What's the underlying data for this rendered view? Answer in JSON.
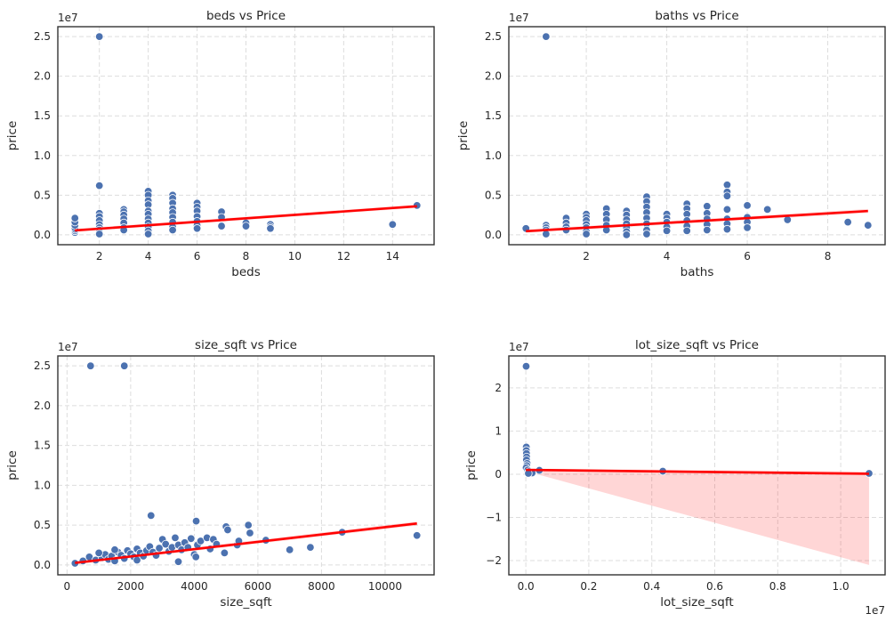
{
  "chart_data": [
    {
      "type": "scatter",
      "title": "beds vs Price",
      "xlabel": "beds",
      "ylabel": "price",
      "y_offset_text": "1e7",
      "x_offset_text": "",
      "xlim": [
        0.3,
        15.7
      ],
      "ylim": [
        -1250000.0,
        26250000.0
      ],
      "xticks": [
        2,
        4,
        6,
        8,
        10,
        12,
        14
      ],
      "xtick_labels": [
        "2",
        "4",
        "6",
        "8",
        "10",
        "12",
        "14"
      ],
      "yticks": [
        0,
        5000000.0,
        10000000.0,
        15000000.0,
        20000000.0,
        25000000.0
      ],
      "ytick_labels": [
        "0.0",
        "0.5",
        "1.0",
        "1.5",
        "2.0",
        "2.5"
      ],
      "grid": true,
      "regression": {
        "x": [
          1,
          15
        ],
        "y": [
          550000.0,
          3600000.0
        ],
        "ci_upper": [
          750000.0,
          3800000.0
        ],
        "ci_lower": [
          350000.0,
          3400000.0
        ]
      },
      "points": [
        [
          1,
          300000.0
        ],
        [
          1,
          500000.0
        ],
        [
          1,
          700000.0
        ],
        [
          1,
          900000.0
        ],
        [
          1,
          1200000.0
        ],
        [
          1,
          1600000.0
        ],
        [
          1,
          2100000.0
        ],
        [
          2,
          25000000.0
        ],
        [
          2,
          6200000.0
        ],
        [
          2,
          2700000.0
        ],
        [
          2,
          2300000.0
        ],
        [
          2,
          1800000.0
        ],
        [
          2,
          1300000.0
        ],
        [
          2,
          900000.0
        ],
        [
          2,
          600000.0
        ],
        [
          2,
          300000.0
        ],
        [
          2,
          100000.0
        ],
        [
          3,
          3200000.0
        ],
        [
          3,
          2900000.0
        ],
        [
          3,
          2500000.0
        ],
        [
          3,
          2000000.0
        ],
        [
          3,
          1500000.0
        ],
        [
          3,
          900000.0
        ],
        [
          3,
          600000.0
        ],
        [
          4,
          5500000.0
        ],
        [
          4,
          5000000.0
        ],
        [
          4,
          4300000.0
        ],
        [
          4,
          3800000.0
        ],
        [
          4,
          3000000.0
        ],
        [
          4,
          2600000.0
        ],
        [
          4,
          2000000.0
        ],
        [
          4,
          1500000.0
        ],
        [
          4,
          1000000.0
        ],
        [
          4,
          500000.0
        ],
        [
          4,
          100000.0
        ],
        [
          5,
          5000000.0
        ],
        [
          5,
          4600000.0
        ],
        [
          5,
          4000000.0
        ],
        [
          5,
          3300000.0
        ],
        [
          5,
          2800000.0
        ],
        [
          5,
          2200000.0
        ],
        [
          5,
          1600000.0
        ],
        [
          5,
          1000000.0
        ],
        [
          5,
          600000.0
        ],
        [
          6,
          4000000.0
        ],
        [
          6,
          3500000.0
        ],
        [
          6,
          3000000.0
        ],
        [
          6,
          2300000.0
        ],
        [
          6,
          1700000.0
        ],
        [
          6,
          1200000.0
        ],
        [
          6,
          800000.0
        ],
        [
          7,
          2900000.0
        ],
        [
          7,
          2200000.0
        ],
        [
          7,
          1100000.0
        ],
        [
          8,
          1500000.0
        ],
        [
          8,
          1100000.0
        ],
        [
          9,
          1300000.0
        ],
        [
          9,
          1000000.0
        ],
        [
          9,
          800000.0
        ],
        [
          14,
          1300000.0
        ],
        [
          15,
          3700000.0
        ]
      ]
    },
    {
      "type": "scatter",
      "title": "baths vs Price",
      "xlabel": "baths",
      "ylabel": "price",
      "y_offset_text": "1e7",
      "x_offset_text": "",
      "xlim": [
        0.075,
        9.425
      ],
      "ylim": [
        -1250000.0,
        26250000.0
      ],
      "xticks": [
        2,
        4,
        6,
        8
      ],
      "xtick_labels": [
        "2",
        "4",
        "6",
        "8"
      ],
      "yticks": [
        0,
        5000000.0,
        10000000.0,
        15000000.0,
        20000000.0,
        25000000.0
      ],
      "ytick_labels": [
        "0.0",
        "0.5",
        "1.0",
        "1.5",
        "2.0",
        "2.5"
      ],
      "grid": true,
      "regression": {
        "x": [
          0.5,
          9
        ],
        "y": [
          450000.0,
          3000000.0
        ],
        "ci_upper": [
          650000.0,
          3250000.0
        ],
        "ci_lower": [
          250000.0,
          2750000.0
        ]
      },
      "points": [
        [
          0.5,
          800000.0
        ],
        [
          1,
          25000000.0
        ],
        [
          1,
          1200000.0
        ],
        [
          1,
          900000.0
        ],
        [
          1,
          600000.0
        ],
        [
          1,
          300000.0
        ],
        [
          1,
          100000.0
        ],
        [
          1.5,
          2100000.0
        ],
        [
          1.5,
          1500000.0
        ],
        [
          1.5,
          1000000.0
        ],
        [
          1.5,
          600000.0
        ],
        [
          2,
          2600000.0
        ],
        [
          2,
          2200000.0
        ],
        [
          2,
          1800000.0
        ],
        [
          2,
          1300000.0
        ],
        [
          2,
          900000.0
        ],
        [
          2,
          400000.0
        ],
        [
          2,
          100000.0
        ],
        [
          2.5,
          3300000.0
        ],
        [
          2.5,
          2600000.0
        ],
        [
          2.5,
          1900000.0
        ],
        [
          2.5,
          1200000.0
        ],
        [
          2.5,
          600000.0
        ],
        [
          3,
          3000000.0
        ],
        [
          3,
          2500000.0
        ],
        [
          3,
          1900000.0
        ],
        [
          3,
          1400000.0
        ],
        [
          3,
          900000.0
        ],
        [
          3,
          400000.0
        ],
        [
          3,
          0
        ],
        [
          3.5,
          4800000.0
        ],
        [
          3.5,
          4200000.0
        ],
        [
          3.5,
          3500000.0
        ],
        [
          3.5,
          2800000.0
        ],
        [
          3.5,
          2100000.0
        ],
        [
          3.5,
          1400000.0
        ],
        [
          3.5,
          600000.0
        ],
        [
          3.5,
          100000.0
        ],
        [
          4,
          2600000.0
        ],
        [
          4,
          2100000.0
        ],
        [
          4,
          1600000.0
        ],
        [
          4,
          1000000.0
        ],
        [
          4,
          500000.0
        ],
        [
          4.5,
          3900000.0
        ],
        [
          4.5,
          3300000.0
        ],
        [
          4.5,
          2600000.0
        ],
        [
          4.5,
          1800000.0
        ],
        [
          4.5,
          1100000.0
        ],
        [
          4.5,
          500000.0
        ],
        [
          5,
          3600000.0
        ],
        [
          5,
          2700000.0
        ],
        [
          5,
          2000000.0
        ],
        [
          5,
          1300000.0
        ],
        [
          5,
          600000.0
        ],
        [
          5.5,
          6300000.0
        ],
        [
          5.5,
          5400000.0
        ],
        [
          5.5,
          4900000.0
        ],
        [
          5.5,
          3200000.0
        ],
        [
          5.5,
          2000000.0
        ],
        [
          5.5,
          1400000.0
        ],
        [
          5.5,
          700000.0
        ],
        [
          6,
          3700000.0
        ],
        [
          6,
          2200000.0
        ],
        [
          6,
          1600000.0
        ],
        [
          6,
          900000.0
        ],
        [
          6.5,
          3200000.0
        ],
        [
          7,
          1900000.0
        ],
        [
          8.5,
          1600000.0
        ],
        [
          9,
          1200000.0
        ]
      ]
    },
    {
      "type": "scatter",
      "title": "size_sqft vs Price",
      "xlabel": "size_sqft",
      "ylabel": "price",
      "y_offset_text": "1e7",
      "x_offset_text": "",
      "xlim": [
        -290,
        11540
      ],
      "ylim": [
        -1250000.0,
        26250000.0
      ],
      "xticks": [
        0,
        2000,
        4000,
        6000,
        8000,
        10000
      ],
      "xtick_labels": [
        "0",
        "2000",
        "4000",
        "6000",
        "8000",
        "10000"
      ],
      "yticks": [
        0,
        5000000.0,
        10000000.0,
        15000000.0,
        20000000.0,
        25000000.0
      ],
      "ytick_labels": [
        "0.0",
        "0.5",
        "1.0",
        "1.5",
        "2.0",
        "2.5"
      ],
      "grid": true,
      "regression": {
        "x": [
          250,
          11000
        ],
        "y": [
          250000.0,
          5200000.0
        ],
        "ci_upper": [
          450000.0,
          5450000.0
        ],
        "ci_lower": [
          50000.0,
          4950000.0
        ]
      },
      "points": [
        [
          740,
          25000000.0
        ],
        [
          1800,
          25000000.0
        ],
        [
          2640,
          6200000.0
        ],
        [
          4060,
          5500000.0
        ],
        [
          5700,
          5000000.0
        ],
        [
          5000,
          4800000.0
        ],
        [
          5050,
          4400000.0
        ],
        [
          5750,
          4000000.0
        ],
        [
          6250,
          3100000.0
        ],
        [
          7000,
          1900000.0
        ],
        [
          7650,
          2200000.0
        ],
        [
          8650,
          4100000.0
        ],
        [
          11000,
          3700000.0
        ],
        [
          4950,
          1500000.0
        ],
        [
          5350,
          2500000.0
        ],
        [
          5400,
          3000000.0
        ],
        [
          250,
          200000.0
        ],
        [
          500,
          500000.0
        ],
        [
          700,
          1000000.0
        ],
        [
          900,
          600000.0
        ],
        [
          1100,
          900000.0
        ],
        [
          1200,
          1300000.0
        ],
        [
          1300,
          700000.0
        ],
        [
          1400,
          1100000.0
        ],
        [
          1500,
          500000.0
        ],
        [
          1600,
          1600000.0
        ],
        [
          1700,
          1200000.0
        ],
        [
          1800,
          800000.0
        ],
        [
          1900,
          1800000.0
        ],
        [
          2000,
          1400000.0
        ],
        [
          2100,
          1000000.0
        ],
        [
          2200,
          2000000.0
        ],
        [
          2300,
          1500000.0
        ],
        [
          2400,
          1100000.0
        ],
        [
          2500,
          1800000.0
        ],
        [
          2600,
          2300000.0
        ],
        [
          2700,
          1600000.0
        ],
        [
          2800,
          1200000.0
        ],
        [
          2900,
          2100000.0
        ],
        [
          3000,
          3200000.0
        ],
        [
          3100,
          2600000.0
        ],
        [
          3200,
          1700000.0
        ],
        [
          3300,
          2200000.0
        ],
        [
          3400,
          3400000.0
        ],
        [
          3500,
          2500000.0
        ],
        [
          3600,
          1900000.0
        ],
        [
          3700,
          2800000.0
        ],
        [
          3800,
          2200000.0
        ],
        [
          3900,
          3300000.0
        ],
        [
          4000,
          1300000.0
        ],
        [
          4100,
          2500000.0
        ],
        [
          4200,
          3000000.0
        ],
        [
          4400,
          3400000.0
        ],
        [
          4500,
          2000000.0
        ],
        [
          4600,
          3200000.0
        ],
        [
          4700,
          2600000.0
        ],
        [
          3500,
          400000.0
        ],
        [
          4050,
          1000000.0
        ],
        [
          2200,
          600000.0
        ],
        [
          1000,
          1500000.0
        ],
        [
          1500,
          1900000.0
        ]
      ]
    },
    {
      "type": "scatter",
      "title": "lot_size_sqft vs Price",
      "xlabel": "lot_size_sqft",
      "ylabel": "price",
      "y_offset_text": "1e7",
      "x_offset_text": "1e7",
      "xlim": [
        -540000.0,
        11410000.0
      ],
      "ylim": [
        -23300000.0,
        27400000.0
      ],
      "xticks": [
        0,
        2000000.0,
        4000000.0,
        6000000.0,
        8000000.0,
        10000000.0
      ],
      "xtick_labels": [
        "0.0",
        "0.2",
        "0.4",
        "0.6",
        "0.8",
        "1.0"
      ],
      "yticks": [
        -20000000.0,
        -10000000.0,
        0,
        10000000.0,
        20000000.0
      ],
      "ytick_labels": [
        "−2",
        "−1",
        "0",
        "1",
        "2"
      ],
      "grid": true,
      "regression": {
        "x": [
          0,
          10900000.0
        ],
        "y": [
          1000000.0,
          100000.0
        ],
        "ci_upper": [
          1300000.0,
          600000.0
        ],
        "ci_lower": [
          700000.0,
          -21000000.0
        ]
      },
      "points": [
        [
          10000.0,
          25000000.0
        ],
        [
          15000.0,
          6300000.0
        ],
        [
          15000.0,
          5500000.0
        ],
        [
          20000.0,
          4800000.0
        ],
        [
          25000.0,
          4000000.0
        ],
        [
          20000.0,
          3300000.0
        ],
        [
          40000.0,
          2500000.0
        ],
        [
          30000.0,
          2000000.0
        ],
        [
          10000.0,
          1500000.0
        ],
        [
          60000.0,
          1000000.0
        ],
        [
          100000.0,
          600000.0
        ],
        [
          200000.0,
          300000.0
        ],
        [
          430000.0,
          900000.0
        ],
        [
          4350000.0,
          700000.0
        ],
        [
          10900000.0,
          200000.0
        ],
        [
          80000.0,
          200000.0
        ]
      ]
    }
  ],
  "colors": {
    "points": "#4c72b0",
    "regression_line": "#ff0000",
    "ci_band": "#ff0000",
    "grid": "#dddddd",
    "axes_edge": "#333333"
  }
}
